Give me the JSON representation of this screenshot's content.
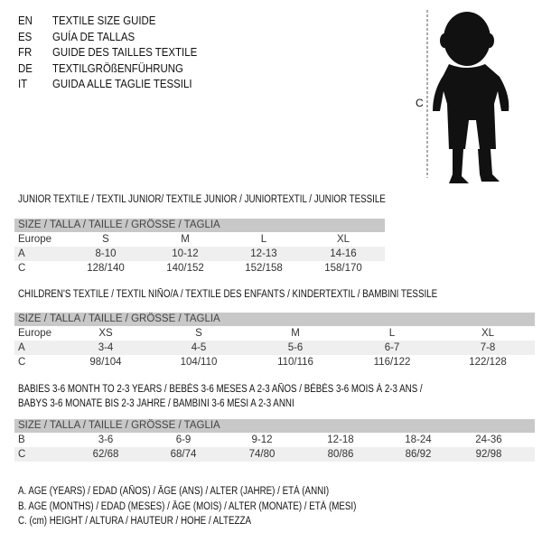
{
  "header": [
    {
      "code": "EN",
      "text": "TEXTILE SIZE GUIDE"
    },
    {
      "code": "ES",
      "text": "GUÍA DE TALLAS"
    },
    {
      "code": "FR",
      "text": "GUIDE DES TAILLES TEXTILE"
    },
    {
      "code": "DE",
      "text": "TEXTILGRÖßENFÜHRUNG"
    },
    {
      "code": "IT",
      "text": "GUIDA ALLE TAGLIE TESSILI"
    }
  ],
  "figure": {
    "label": "C",
    "icon": "child-silhouette"
  },
  "size_header": "SIZE / TALLA / TAILLE / GRÖSSE / TAGLIA",
  "junior": {
    "title": "JUNIOR TEXTILE / TEXTIL JUNIOR/ TEXTILE JUNIOR / JUNIORTEXTIL / JUNIOR TESSILE",
    "rows": [
      {
        "label": "Europe",
        "values": [
          "S",
          "M",
          "L",
          "XL"
        ]
      },
      {
        "label": "A",
        "values": [
          "8-10",
          "10-12",
          "12-13",
          "14-16"
        ]
      },
      {
        "label": "C",
        "values": [
          "128/140",
          "140/152",
          "152/158",
          "158/170"
        ]
      }
    ]
  },
  "children": {
    "title": "CHILDREN'S TEXTILE / TEXTIL NIÑO/A / TEXTILE DES ENFANTS / KINDERTEXTIL / BAMBINI TESSILE",
    "rows": [
      {
        "label": "Europe",
        "values": [
          "XS",
          "S",
          "M",
          "L",
          "XL"
        ]
      },
      {
        "label": "A",
        "values": [
          "3-4",
          "4-5",
          "5-6",
          "6-7",
          "7-8"
        ]
      },
      {
        "label": "C",
        "values": [
          "98/104",
          "104/110",
          "110/116",
          "116/122",
          "122/128"
        ]
      }
    ]
  },
  "babies": {
    "title1": "BABIES 3-6 MONTH TO 2-3 YEARS / BEBÉS 3-6 MESES A 2-3 AÑOS / BÉBÉS 3-6 MOIS À 2-3 ANS /",
    "title2": "BABYS 3-6 MONATE BIS 2-3 JAHRE / BAMBINI 3-6 MESI A 2-3 ANNI",
    "rows": [
      {
        "label": "B",
        "values": [
          "3-6",
          "6-9",
          "9-12",
          "12-18",
          "18-24",
          "24-36"
        ]
      },
      {
        "label": "C",
        "values": [
          "62/68",
          "68/74",
          "74/80",
          "80/86",
          "86/92",
          "92/98"
        ]
      }
    ]
  },
  "legend": [
    "A. AGE (YEARS) / EDAD (AÑOS) / ÂGE (ANS) / ALTER (JAHRE) / ETÀ (ANNI)",
    "B. AGE (MONTHS) / EDAD (MESES) / ÂGE (MOIS) / ALTER (MONATE) / ETÀ (MESI)",
    "C. (cm) HEIGHT / ALTURA / HAUTEUR / HÖHE / ALTEZZA"
  ]
}
